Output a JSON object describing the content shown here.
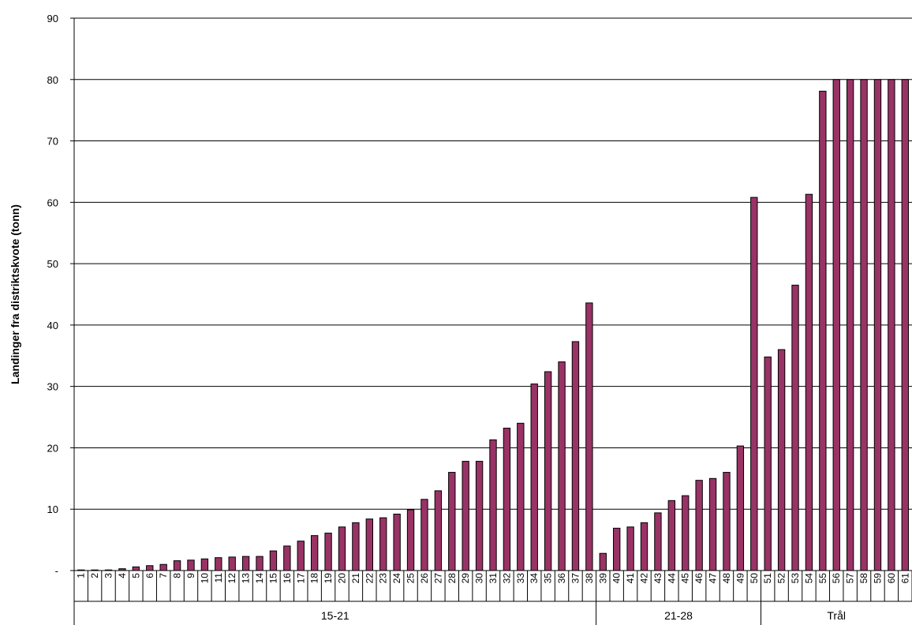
{
  "chart_data": {
    "type": "bar",
    "ylabel": "Landinger fra distriktskvote (tonn)",
    "ylim": [
      0,
      90
    ],
    "yticks": [
      0,
      10,
      20,
      30,
      40,
      50,
      60,
      70,
      80,
      90
    ],
    "ytick_labels": [
      "-",
      "10",
      "20",
      "30",
      "40",
      "50",
      "60",
      "70",
      "80",
      "90"
    ],
    "grid": true,
    "bar_color": "#993366",
    "categories": [
      "1",
      "2",
      "3",
      "4",
      "5",
      "6",
      "7",
      "8",
      "9",
      "10",
      "11",
      "12",
      "13",
      "14",
      "15",
      "16",
      "17",
      "18",
      "19",
      "20",
      "21",
      "22",
      "23",
      "24",
      "25",
      "26",
      "27",
      "28",
      "29",
      "30",
      "31",
      "32",
      "33",
      "34",
      "35",
      "36",
      "37",
      "38",
      "39",
      "40",
      "41",
      "42",
      "43",
      "44",
      "45",
      "46",
      "47",
      "48",
      "49",
      "50",
      "51",
      "52",
      "53",
      "54",
      "55",
      "56",
      "57",
      "58",
      "59",
      "60",
      "61"
    ],
    "values": [
      0.1,
      0.1,
      0.1,
      0.3,
      0.6,
      0.8,
      1.0,
      1.6,
      1.7,
      1.9,
      2.1,
      2.2,
      2.3,
      2.3,
      3.2,
      4.0,
      4.8,
      5.7,
      6.1,
      7.1,
      7.8,
      8.4,
      8.6,
      9.2,
      9.9,
      11.6,
      13.0,
      16.0,
      17.8,
      17.8,
      21.3,
      23.2,
      24.0,
      30.4,
      32.4,
      34.0,
      37.3,
      43.6,
      2.8,
      6.9,
      7.1,
      7.8,
      9.4,
      11.4,
      12.2,
      14.7,
      15.0,
      16.0,
      20.3,
      60.8,
      34.8,
      36.0,
      46.5,
      61.3,
      78.1,
      80.0,
      80.0,
      80.0,
      80.0,
      80.0,
      80.0
    ],
    "groups": [
      {
        "label": "15-21",
        "start": 1,
        "end": 38
      },
      {
        "label": "21-28",
        "start": 39,
        "end": 50
      },
      {
        "label": "Trål",
        "start": 51,
        "end": 61
      }
    ]
  }
}
